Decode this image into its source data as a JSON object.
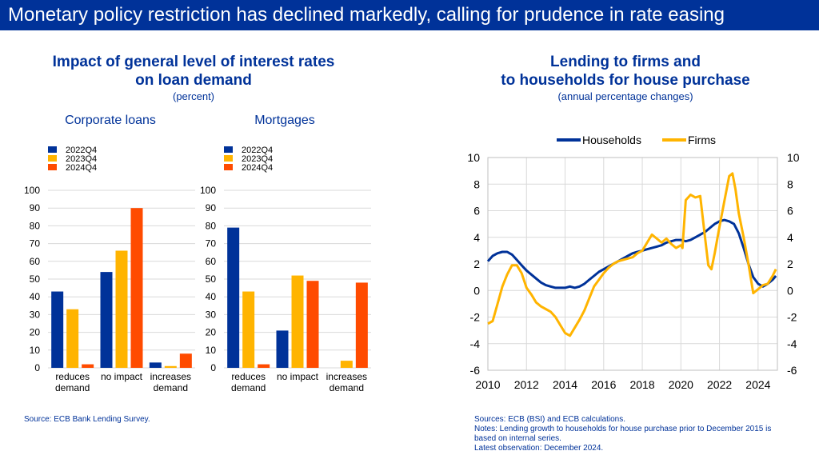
{
  "banner": "Monetary policy restriction has declined markedly, calling for prudence in rate easing",
  "left": {
    "title_line1": "Impact of general level of interest rates",
    "title_line2": "on loan demand",
    "subtitle": "(percent)",
    "source": "Source: ECB Bank Lending Survey."
  },
  "right": {
    "title_line1": "Lending to firms and",
    "title_line2": "to households for house purchase",
    "subtitle": "(annual percentage changes)",
    "source_lines": [
      "Sources: ECB (BSI) and ECB calculations.",
      "Notes: Lending growth to households for house purchase prior to December 2015 is",
      "based on internal series.",
      "Latest observation: December 2024."
    ]
  },
  "colors": {
    "dark_blue": "#003299",
    "yellow": "#FFB400",
    "orange": "#FF4B00",
    "grid": "#d9d9d9"
  },
  "chart_data": [
    {
      "type": "bar",
      "title": "Corporate loans",
      "categories": [
        "reduces demand",
        "no impact",
        "increases demand"
      ],
      "category_lines": [
        [
          "reduces",
          "demand"
        ],
        [
          "no impact"
        ],
        [
          "increases",
          "demand"
        ]
      ],
      "series": [
        {
          "name": "2022Q4",
          "color": "#003299",
          "values": [
            43,
            54,
            3
          ]
        },
        {
          "name": "2023Q4",
          "color": "#FFB400",
          "values": [
            33,
            66,
            1
          ]
        },
        {
          "name": "2024Q4",
          "color": "#FF4B00",
          "values": [
            2,
            90,
            8
          ]
        }
      ],
      "ylim": [
        0,
        100
      ],
      "yticks": [
        0,
        10,
        20,
        30,
        40,
        50,
        60,
        70,
        80,
        90,
        100
      ],
      "grid": true,
      "legend": "top-left"
    },
    {
      "type": "bar",
      "title": "Mortgages",
      "categories": [
        "reduces demand",
        "no impact",
        "increases demand"
      ],
      "category_lines": [
        [
          "reduces",
          "demand"
        ],
        [
          "no impact"
        ],
        [
          "increases",
          "demand"
        ]
      ],
      "series": [
        {
          "name": "2022Q4",
          "color": "#003299",
          "values": [
            79,
            21,
            0
          ]
        },
        {
          "name": "2023Q4",
          "color": "#FFB400",
          "values": [
            43,
            52,
            4
          ]
        },
        {
          "name": "2024Q4",
          "color": "#FF4B00",
          "values": [
            2,
            49,
            48
          ]
        }
      ],
      "ylim": [
        0,
        100
      ],
      "yticks": [
        0,
        10,
        20,
        30,
        40,
        50,
        60,
        70,
        80,
        90,
        100
      ],
      "grid": true,
      "legend": "top-left"
    },
    {
      "type": "line",
      "title": "Lending to firms and to households for house purchase",
      "xlim": [
        2010,
        2025
      ],
      "xticks": [
        2010,
        2012,
        2014,
        2016,
        2018,
        2020,
        2022,
        2024
      ],
      "ylim": [
        -6,
        10
      ],
      "yticks": [
        -6,
        -4,
        -2,
        0,
        2,
        4,
        6,
        8,
        10
      ],
      "grid": true,
      "legend": "top-center",
      "series": [
        {
          "name": "Households",
          "color": "#003299",
          "x": [
            2010.0,
            2010.25,
            2010.5,
            2010.75,
            2011.0,
            2011.25,
            2011.5,
            2011.75,
            2012.0,
            2012.25,
            2012.5,
            2012.75,
            2013.0,
            2013.25,
            2013.5,
            2013.75,
            2014.0,
            2014.25,
            2014.5,
            2014.75,
            2015.0,
            2015.25,
            2015.5,
            2015.75,
            2016.0,
            2016.25,
            2016.5,
            2016.75,
            2017.0,
            2017.25,
            2017.5,
            2017.75,
            2018.0,
            2018.25,
            2018.5,
            2018.75,
            2019.0,
            2019.25,
            2019.5,
            2019.75,
            2020.0,
            2020.25,
            2020.5,
            2020.75,
            2021.0,
            2021.25,
            2021.5,
            2021.75,
            2022.0,
            2022.25,
            2022.5,
            2022.75,
            2023.0,
            2023.25,
            2023.5,
            2023.75,
            2024.0,
            2024.25,
            2024.5,
            2024.75,
            2024.92
          ],
          "y": [
            2.2,
            2.6,
            2.8,
            2.9,
            2.9,
            2.7,
            2.3,
            1.9,
            1.5,
            1.2,
            0.9,
            0.6,
            0.4,
            0.3,
            0.2,
            0.2,
            0.2,
            0.3,
            0.2,
            0.3,
            0.5,
            0.8,
            1.1,
            1.4,
            1.6,
            1.8,
            2.0,
            2.2,
            2.4,
            2.6,
            2.8,
            2.9,
            3.0,
            3.1,
            3.2,
            3.3,
            3.4,
            3.6,
            3.7,
            3.8,
            3.8,
            3.7,
            3.8,
            4.0,
            4.2,
            4.4,
            4.7,
            5.0,
            5.2,
            5.3,
            5.2,
            5.0,
            4.3,
            3.2,
            2.0,
            1.0,
            0.5,
            0.3,
            0.5,
            0.8,
            1.1
          ]
        },
        {
          "name": "Firms",
          "color": "#FFB400",
          "x": [
            2010.0,
            2010.25,
            2010.5,
            2010.75,
            2011.0,
            2011.25,
            2011.5,
            2011.75,
            2012.0,
            2012.25,
            2012.5,
            2012.75,
            2013.0,
            2013.25,
            2013.5,
            2013.75,
            2014.0,
            2014.25,
            2014.5,
            2014.75,
            2015.0,
            2015.25,
            2015.5,
            2015.75,
            2016.0,
            2016.25,
            2016.5,
            2016.75,
            2017.0,
            2017.25,
            2017.5,
            2017.75,
            2018.0,
            2018.25,
            2018.5,
            2018.75,
            2019.0,
            2019.25,
            2019.5,
            2019.75,
            2020.0,
            2020.08,
            2020.25,
            2020.5,
            2020.75,
            2021.0,
            2021.25,
            2021.42,
            2021.58,
            2021.75,
            2022.0,
            2022.25,
            2022.5,
            2022.67,
            2022.83,
            2023.0,
            2023.25,
            2023.5,
            2023.75,
            2024.0,
            2024.25,
            2024.5,
            2024.75,
            2024.92
          ],
          "y": [
            -2.5,
            -2.3,
            -1.0,
            0.3,
            1.2,
            1.9,
            1.9,
            1.3,
            0.2,
            -0.3,
            -0.9,
            -1.2,
            -1.4,
            -1.6,
            -2.0,
            -2.6,
            -3.2,
            -3.4,
            -2.8,
            -2.2,
            -1.5,
            -0.6,
            0.3,
            0.8,
            1.3,
            1.7,
            2.0,
            2.2,
            2.3,
            2.4,
            2.5,
            2.8,
            3.0,
            3.6,
            4.2,
            3.9,
            3.6,
            3.9,
            3.5,
            3.2,
            3.4,
            3.2,
            6.8,
            7.2,
            7.0,
            7.1,
            4.0,
            1.9,
            1.6,
            2.8,
            4.8,
            6.7,
            8.6,
            8.8,
            7.6,
            5.8,
            4.0,
            2.0,
            -0.2,
            0.1,
            0.4,
            0.5,
            1.1,
            1.6
          ]
        }
      ]
    }
  ]
}
